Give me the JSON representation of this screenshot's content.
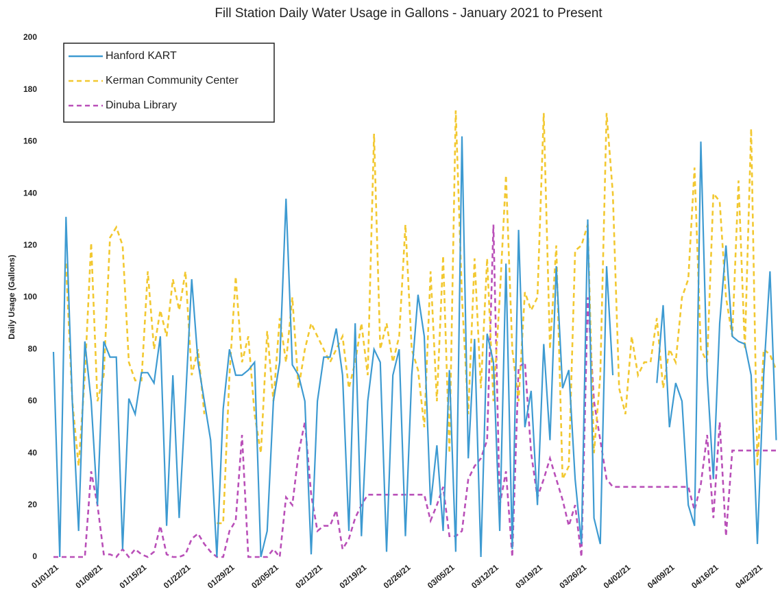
{
  "chart_data": {
    "type": "line",
    "title": "Fill Station Daily Water Usage in Gallons - January 2021 to Present",
    "y_label": "Daily Usage (Gallons)",
    "categories": [
      "01/01/21",
      null,
      null,
      null,
      null,
      null,
      null,
      "01/08/21",
      null,
      null,
      null,
      null,
      null,
      null,
      "01/15/21",
      null,
      null,
      null,
      null,
      null,
      null,
      "01/22/21",
      null,
      null,
      null,
      null,
      null,
      null,
      "01/29/21",
      null,
      null,
      null,
      null,
      null,
      null,
      "02/05/21",
      null,
      null,
      null,
      null,
      null,
      null,
      "02/12/21",
      null,
      null,
      null,
      null,
      null,
      null,
      "02/19/21",
      null,
      null,
      null,
      null,
      null,
      null,
      "02/26/21",
      null,
      null,
      null,
      null,
      null,
      null,
      "03/05/21",
      null,
      null,
      null,
      null,
      null,
      null,
      "03/12/21",
      null,
      null,
      null,
      null,
      null,
      null,
      "03/19/21",
      null,
      null,
      null,
      null,
      null,
      null,
      "03/26/21",
      null,
      null,
      null,
      null,
      null,
      null,
      "04/02/21",
      null,
      null,
      null,
      null,
      null,
      null,
      "04/09/21",
      null,
      null,
      null,
      null,
      null,
      null,
      "04/16/21",
      null,
      null,
      null,
      null,
      null,
      null,
      "04/23/21",
      null,
      null,
      null
    ],
    "series": [
      {
        "name": "Hanford KART",
        "color": "#3d9ad1",
        "dash": false,
        "values": [
          79,
          0,
          131,
          60,
          10,
          83,
          60,
          20,
          83,
          77,
          77,
          3,
          61,
          55,
          71,
          71,
          67,
          85,
          12,
          70,
          15,
          60,
          107,
          75,
          60,
          45,
          0,
          57,
          80,
          70,
          70,
          72,
          75,
          0,
          10,
          60,
          75,
          138,
          74,
          70,
          60,
          1,
          60,
          77,
          77,
          88,
          70,
          10,
          90,
          8,
          60,
          80,
          75,
          2,
          70,
          80,
          8,
          70,
          101,
          85,
          20,
          43,
          10,
          72,
          2,
          162,
          38,
          84,
          0,
          86,
          75,
          10,
          113,
          3,
          126,
          50,
          64,
          20,
          82,
          45,
          112,
          65,
          72,
          30,
          5,
          130,
          15,
          5,
          112,
          70,
          null,
          null,
          null,
          null,
          null,
          null,
          67,
          97,
          50,
          67,
          60,
          20,
          12,
          160,
          70,
          30,
          90,
          120,
          85,
          83,
          82,
          70,
          5,
          70,
          110,
          45
        ]
      },
      {
        "name": "Kerman Community Center",
        "color": "#f2c830",
        "dash": true,
        "values": [
          null,
          null,
          113,
          60,
          35,
          70,
          121,
          60,
          70,
          123,
          127,
          120,
          75,
          68,
          68,
          110,
          80,
          95,
          85,
          107,
          95,
          110,
          70,
          80,
          55,
          null,
          13,
          13,
          70,
          108,
          75,
          85,
          55,
          40,
          87,
          60,
          92,
          75,
          100,
          65,
          80,
          90,
          85,
          80,
          75,
          80,
          85,
          65,
          75,
          90,
          70,
          163,
          80,
          90,
          75,
          85,
          128,
          80,
          72,
          50,
          110,
          60,
          116,
          40,
          172,
          100,
          55,
          115,
          65,
          115,
          60,
          100,
          147,
          80,
          60,
          102,
          95,
          100,
          171,
          80,
          120,
          30,
          35,
          118,
          120,
          128,
          40,
          70,
          171,
          140,
          65,
          55,
          85,
          70,
          75,
          75,
          92,
          65,
          80,
          75,
          100,
          107,
          150,
          80,
          75,
          140,
          137,
          100,
          85,
          145,
          80,
          165,
          35,
          80,
          78,
          72
        ]
      },
      {
        "name": "Dinuba Library",
        "color": "#b94fb8",
        "dash": true,
        "values": [
          0,
          0,
          0,
          0,
          0,
          0,
          33,
          20,
          1,
          1,
          0,
          3,
          0,
          3,
          1,
          0,
          2,
          12,
          1,
          0,
          0,
          1,
          7,
          9,
          5,
          2,
          0,
          0,
          10,
          14,
          47,
          0,
          0,
          0,
          0,
          3,
          0,
          23,
          20,
          40,
          52,
          24,
          10,
          12,
          12,
          18,
          3,
          7,
          15,
          20,
          24,
          24,
          24,
          24,
          24,
          24,
          24,
          24,
          24,
          24,
          14,
          20,
          27,
          8,
          8,
          10,
          30,
          35,
          38,
          45,
          128,
          20,
          33,
          0,
          73,
          75,
          40,
          23,
          30,
          38,
          30,
          22,
          12,
          20,
          0,
          100,
          60,
          45,
          30,
          27,
          27,
          27,
          27,
          27,
          27,
          27,
          27,
          27,
          27,
          27,
          27,
          27,
          18,
          28,
          47,
          15,
          52,
          8,
          41,
          41,
          41,
          41,
          41,
          41,
          41,
          41
        ]
      }
    ],
    "ylim": [
      0,
      200
    ],
    "yticks": [
      0,
      20,
      40,
      60,
      80,
      100,
      120,
      140,
      160,
      180,
      200
    ],
    "legend": "upper left"
  }
}
